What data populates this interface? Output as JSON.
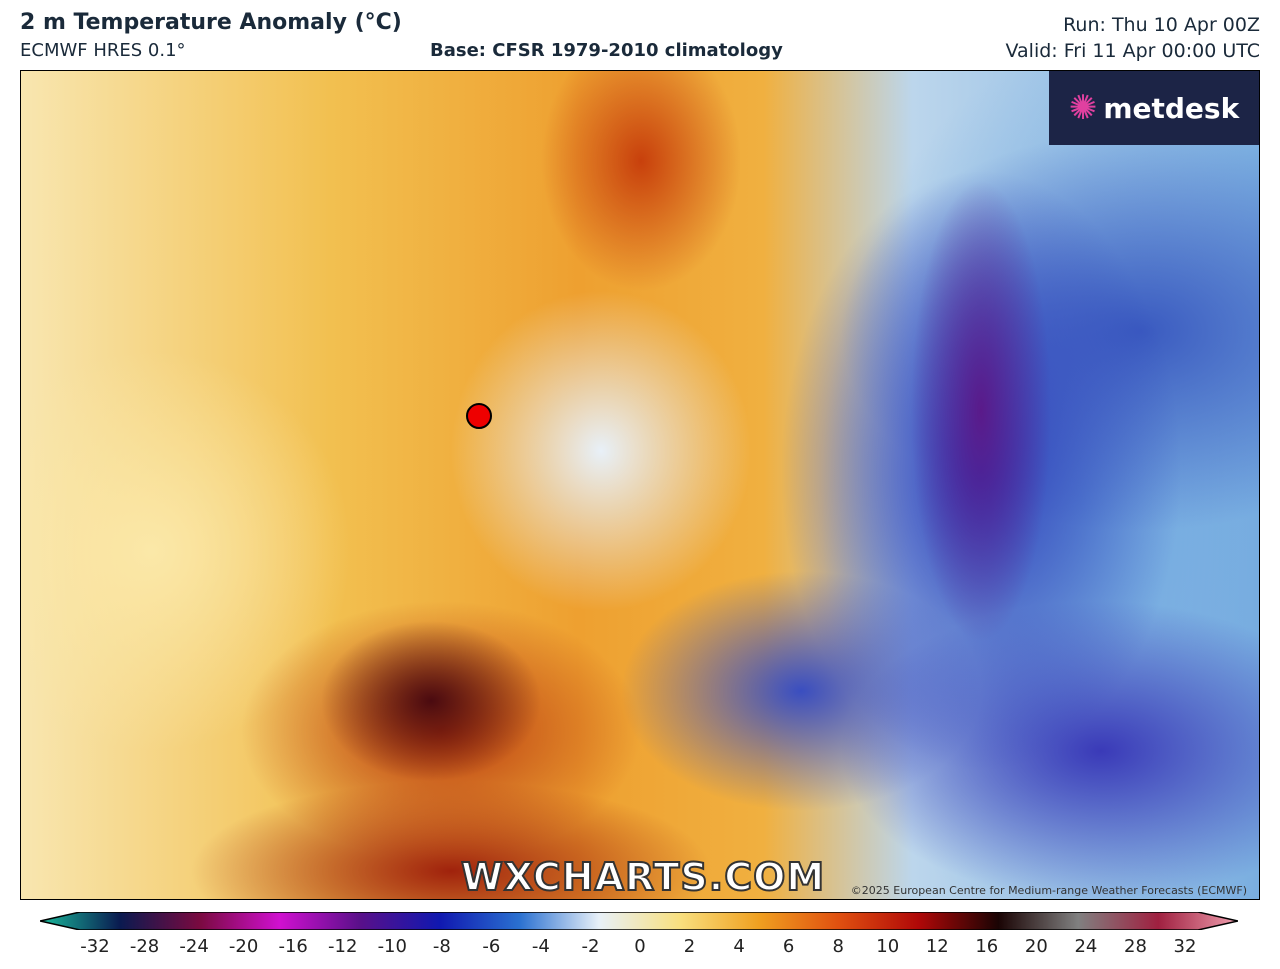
{
  "header": {
    "title": "2 m Temperature Anomaly (°C)",
    "model": "ECMWF HRES 0.1°",
    "base": "Base: CFSR 1979-2010 climatology",
    "run": "Run: Thu 10 Apr 00Z",
    "valid": "Valid: Fri 11 Apr 00:00 UTC"
  },
  "map": {
    "logo_text": "metdesk",
    "watermark": "WXCHARTS.COM",
    "copyright": "©2025 European Centre for Medium-range Weather Forecasts (ECMWF)",
    "marker_color": "#e00000"
  },
  "colorbar": {
    "ticks": [
      "-32",
      "-28",
      "-24",
      "-20",
      "-16",
      "-12",
      "-10",
      "-8",
      "-6",
      "-4",
      "-2",
      "0",
      "2",
      "4",
      "6",
      "8",
      "10",
      "12",
      "16",
      "20",
      "24",
      "28",
      "32"
    ],
    "colors": [
      "#1abc9c",
      "#0a1a50",
      "#7a0a40",
      "#d010d0",
      "#5a108a",
      "#1018b0",
      "#2a70d0",
      "#e8f0f8",
      "#f8e080",
      "#f0a020",
      "#e05010",
      "#b00808",
      "#1a0404",
      "#808080",
      "#a02040",
      "#f0a0b0"
    ]
  }
}
